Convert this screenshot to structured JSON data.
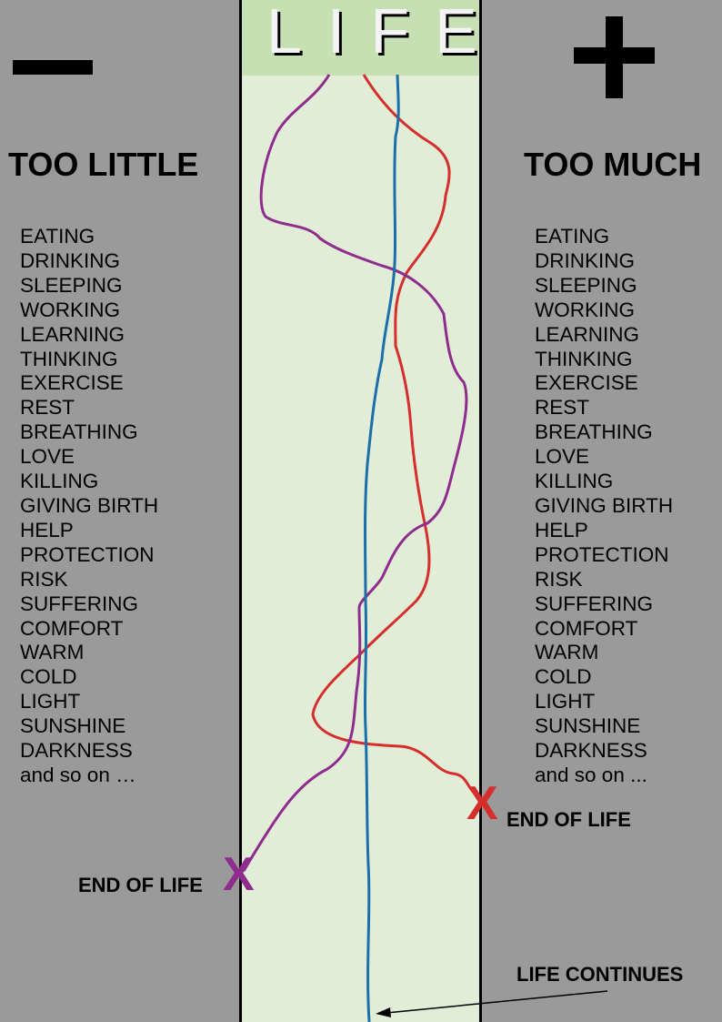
{
  "title": "LIFE",
  "left": {
    "symbol": "−",
    "heading": "TOO LITTLE",
    "items": [
      "EATING",
      "DRINKING",
      "SLEEPING",
      "WORKING",
      "LEARNING",
      "THINKING",
      "EXERCISE",
      "REST",
      "BREATHING",
      "LOVE",
      "KILLING",
      "GIVING BIRTH",
      "HELP",
      "PROTECTION",
      "RISK",
      "SUFFERING",
      "COMFORT",
      "WARM",
      "COLD",
      "LIGHT",
      "SUNSHINE",
      "DARKNESS",
      "and so on …"
    ]
  },
  "right": {
    "symbol": "+",
    "heading": "TOO MUCH",
    "items": [
      "EATING",
      "DRINKING",
      "SLEEPING",
      "WORKING",
      "LEARNING",
      "THINKING",
      "EXERCISE",
      "REST",
      "BREATHING",
      "LOVE",
      "KILLING",
      "GIVING BIRTH",
      "HELP",
      "PROTECTION",
      "RISK",
      "SUFFERING",
      "COMFORT",
      "WARM",
      "COLD",
      "LIGHT",
      "SUNSHINE",
      "DARKNESS",
      "and so on ..."
    ]
  },
  "labels": {
    "end_left": "END OF LIFE",
    "end_right": "END OF LIFE",
    "continues": "LIFE CONTINUES",
    "x_mark_left": "X",
    "x_mark_right": "X"
  },
  "colors": {
    "background": "#9a9a9a",
    "band": "#e1edd6",
    "band_header": "#c6e0b4",
    "red_path": "#d62d2d",
    "purple_path": "#8e2d8e",
    "blue_path": "#1a6fa8"
  }
}
